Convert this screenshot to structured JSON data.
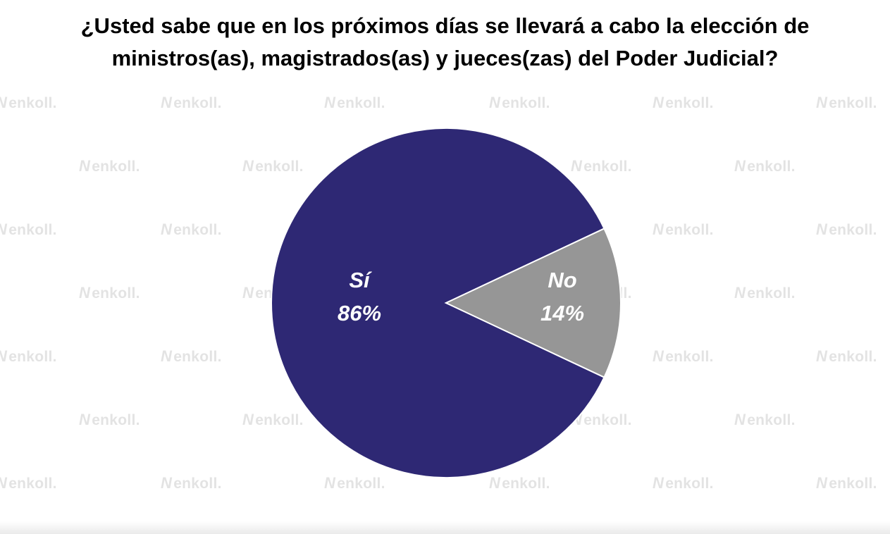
{
  "title": {
    "line1": "¿Usted sabe que en los próximos días se llevará a cabo la elección de",
    "line2": "ministros(as), magistrados(as) y jueces(zas) del Poder Judicial?"
  },
  "watermark": {
    "text": "enkoll.",
    "icon": "enkoll-logo-icon",
    "color": "#e3e3e3"
  },
  "chart_data": {
    "type": "pie",
    "title": "¿Usted sabe que en los próximos días se llevará a cabo la elección de ministros(as), magistrados(as) y jueces(zas) del Poder Judicial?",
    "slices": [
      {
        "label": "Sí",
        "value": 86,
        "value_label": "86%",
        "color": "#2e2874"
      },
      {
        "label": "No",
        "value": 14,
        "value_label": "14%",
        "color": "#969696"
      }
    ],
    "unit": "%",
    "legend": "none",
    "start_angle_deg": 90,
    "direction": "counterclockwise"
  }
}
